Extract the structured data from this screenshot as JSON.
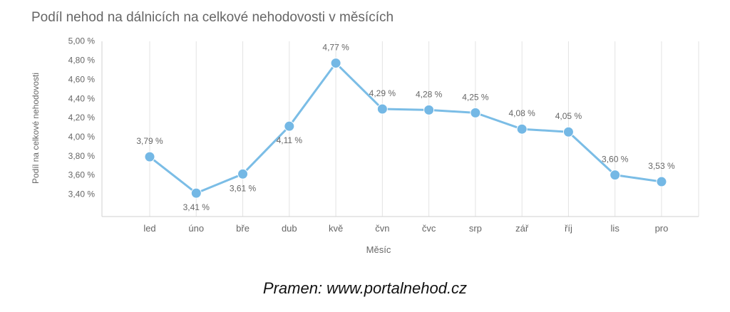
{
  "title": "Podíl nehod na dálnicích na celkové nehodovosti v měsících",
  "source": "Pramen: www.portalnehod.cz",
  "colors": {
    "line": "#7bbde6",
    "marker": "#74b8e5",
    "grid": "#e3e3e3",
    "text": "#666666"
  },
  "chart_data": {
    "type": "line",
    "xlabel": "Měsíc",
    "ylabel": "Podíl na celkové nehodovosti",
    "ylim": [
      3.3,
      5.0
    ],
    "y_ticks": [
      3.4,
      3.6,
      3.8,
      4.0,
      4.2,
      4.4,
      4.6,
      4.8,
      5.0
    ],
    "y_tick_labels": [
      "3,40 %",
      "3,60 %",
      "3,80 %",
      "4,00 %",
      "4,20 %",
      "4,40 %",
      "4,60 %",
      "4,80 %",
      "5,00 %"
    ],
    "grid": "vertical",
    "categories": [
      "led",
      "úno",
      "bře",
      "dub",
      "kvě",
      "čvn",
      "čvc",
      "srp",
      "zář",
      "říj",
      "lis",
      "pro"
    ],
    "values": [
      3.79,
      3.41,
      3.61,
      4.11,
      4.77,
      4.29,
      4.28,
      4.25,
      4.08,
      4.05,
      3.6,
      3.53
    ],
    "data_labels": [
      "3,79 %",
      "3,41 %",
      "3,61 %",
      "4,11 %",
      "4,77 %",
      "4,29 %",
      "4,28 %",
      "4,25 %",
      "4,08 %",
      "4,05 %",
      "3,60 %",
      "3,53 %"
    ]
  }
}
